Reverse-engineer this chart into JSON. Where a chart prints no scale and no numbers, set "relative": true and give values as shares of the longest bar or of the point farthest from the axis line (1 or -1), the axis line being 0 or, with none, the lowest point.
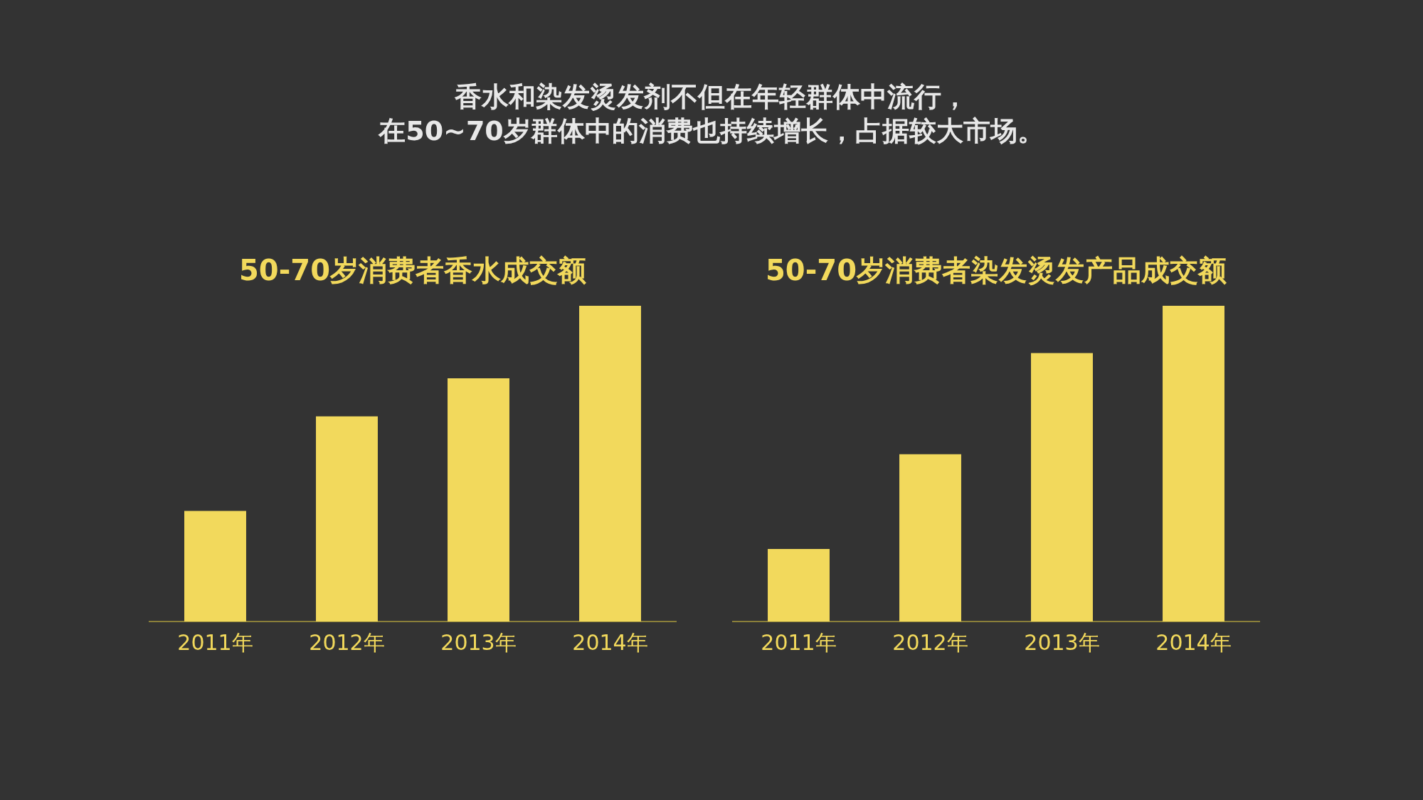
{
  "chart_data": [
    {
      "type": "other",
      "title": "香水和染发烫发剂不但在年轻群体中流行，",
      "subtitle": "在50~70岁群体中的消费也持续增长，占据较大市场。"
    },
    {
      "type": "bar",
      "title": "50-70岁消费者香水成交额",
      "categories": [
        "2011年",
        "2012年",
        "2013年",
        "2014年"
      ],
      "values": [
        0.35,
        0.65,
        0.77,
        1
      ],
      "color": "#f2d95c",
      "relative": true
    },
    {
      "type": "bar",
      "title": "50-70岁消费者染发烫发产品成交额",
      "categories": [
        "2011年",
        "2012年",
        "2013年",
        "2014年"
      ],
      "values": [
        0.23,
        0.53,
        0.85,
        1
      ],
      "color": "#f2d95c",
      "relative": true
    }
  ]
}
